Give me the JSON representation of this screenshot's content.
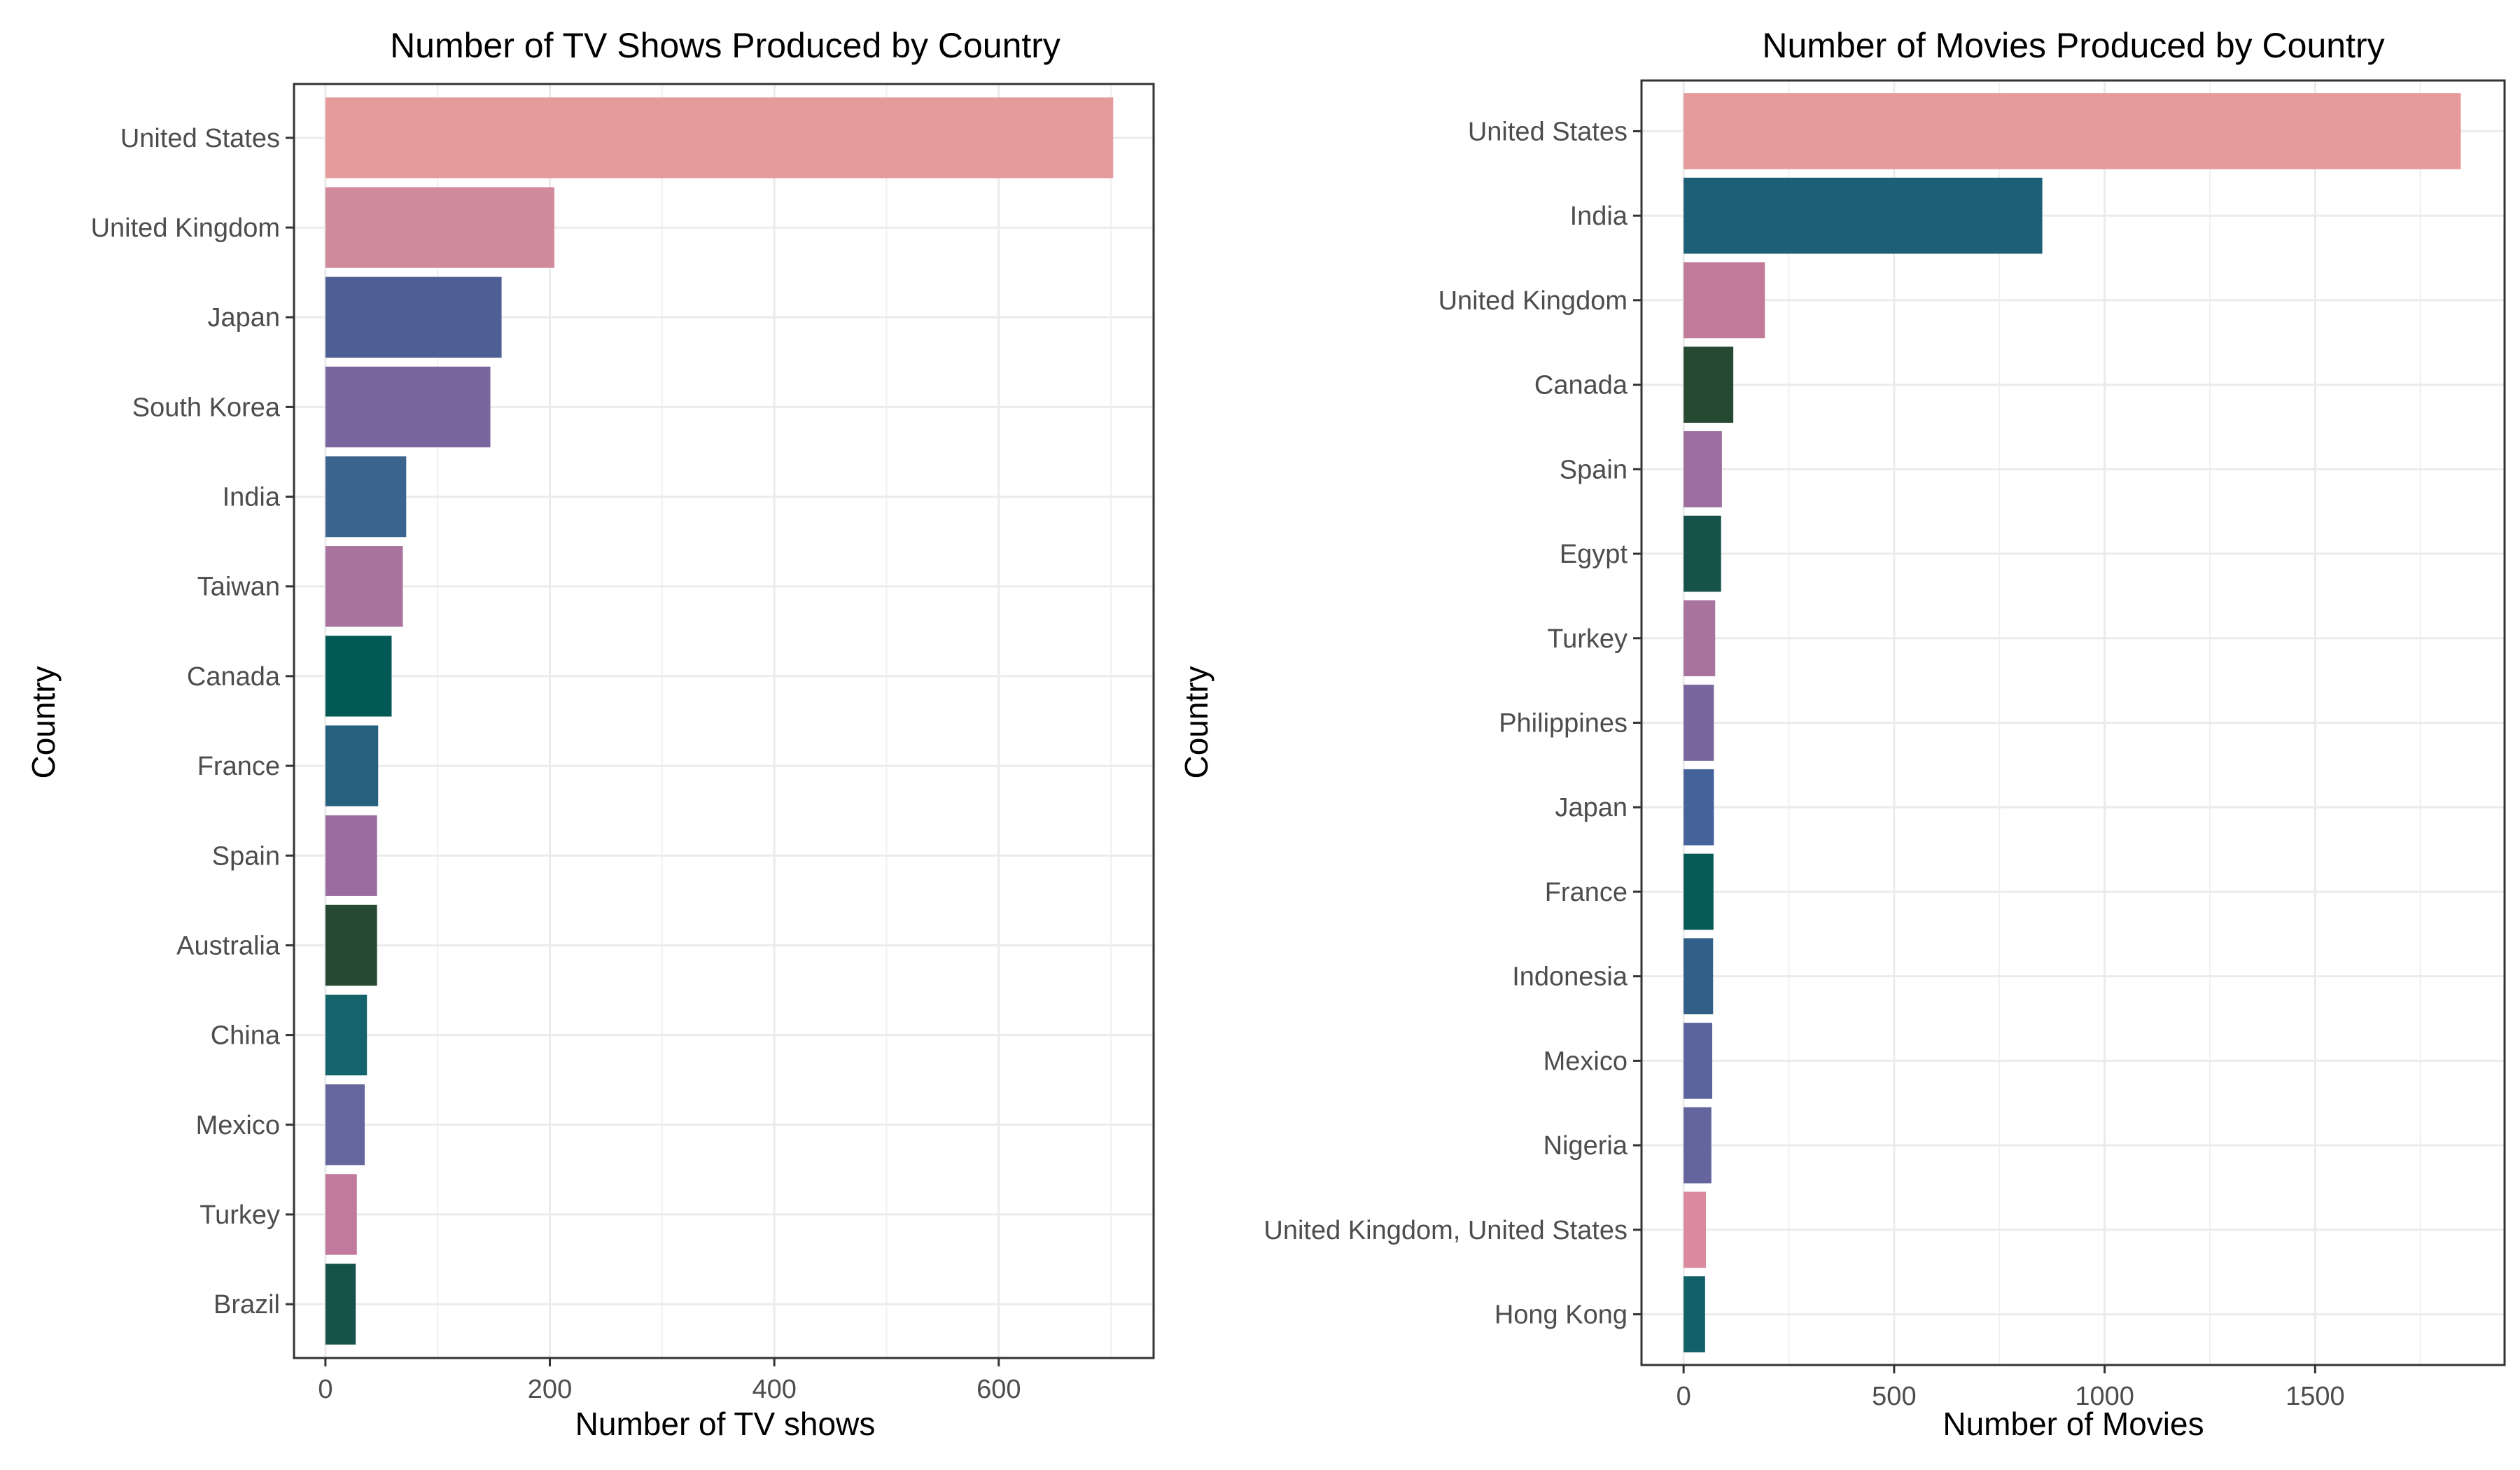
{
  "chart_data": [
    {
      "type": "bar",
      "orientation": "horizontal",
      "title": "Number of TV Shows Produced by Country",
      "xlabel": "Number of TV shows",
      "ylabel": "Country",
      "xlim": [
        -28,
        738
      ],
      "xticks": [
        0,
        200,
        400,
        600
      ],
      "grid": true,
      "legend": "none",
      "categories": [
        "United States",
        "United Kingdom",
        "Japan",
        "South Korea",
        "India",
        "Taiwan",
        "Canada",
        "France",
        "Spain",
        "Australia",
        "China",
        "Mexico",
        "Turkey",
        "Brazil"
      ],
      "values": [
        702,
        204,
        157,
        147,
        72,
        69,
        59,
        47,
        46,
        46,
        37,
        35,
        28,
        27
      ],
      "colors": [
        "#e59b9b",
        "#d18a9a",
        "#4e5f94",
        "#7a669e",
        "#3b648e",
        "#a8749d",
        "#035a55",
        "#275f7e",
        "#9a6c9f",
        "#254a31",
        "#15646b",
        "#65669e",
        "#c17a9e",
        "#16514a"
      ]
    },
    {
      "type": "bar",
      "orientation": "horizontal",
      "title": "Number of Movies Produced by Country",
      "xlabel": "Number of Movies",
      "ylabel": "Country",
      "xlim": [
        -100,
        1950
      ],
      "xticks": [
        0,
        500,
        1000,
        1500
      ],
      "grid": true,
      "legend": "none",
      "categories": [
        "United States",
        "India",
        "United Kingdom",
        "Canada",
        "Spain",
        "Egypt",
        "Turkey",
        "Philippines",
        "Japan",
        "France",
        "Indonesia",
        "Mexico",
        "Nigeria",
        "United Kingdom, United States",
        "Hong Kong"
      ],
      "values": [
        1846,
        852,
        193,
        118,
        91,
        89,
        75,
        72,
        72,
        71,
        70,
        68,
        66,
        53,
        51
      ],
      "colors": [
        "#e59b9b",
        "#1e5f78",
        "#c17a9a",
        "#254a31",
        "#9b6e9f",
        "#16514a",
        "#a8749d",
        "#7a669e",
        "#44639a",
        "#055a55",
        "#325f88",
        "#5c649e",
        "#65659e",
        "#d98a9c",
        "#126068"
      ]
    }
  ]
}
